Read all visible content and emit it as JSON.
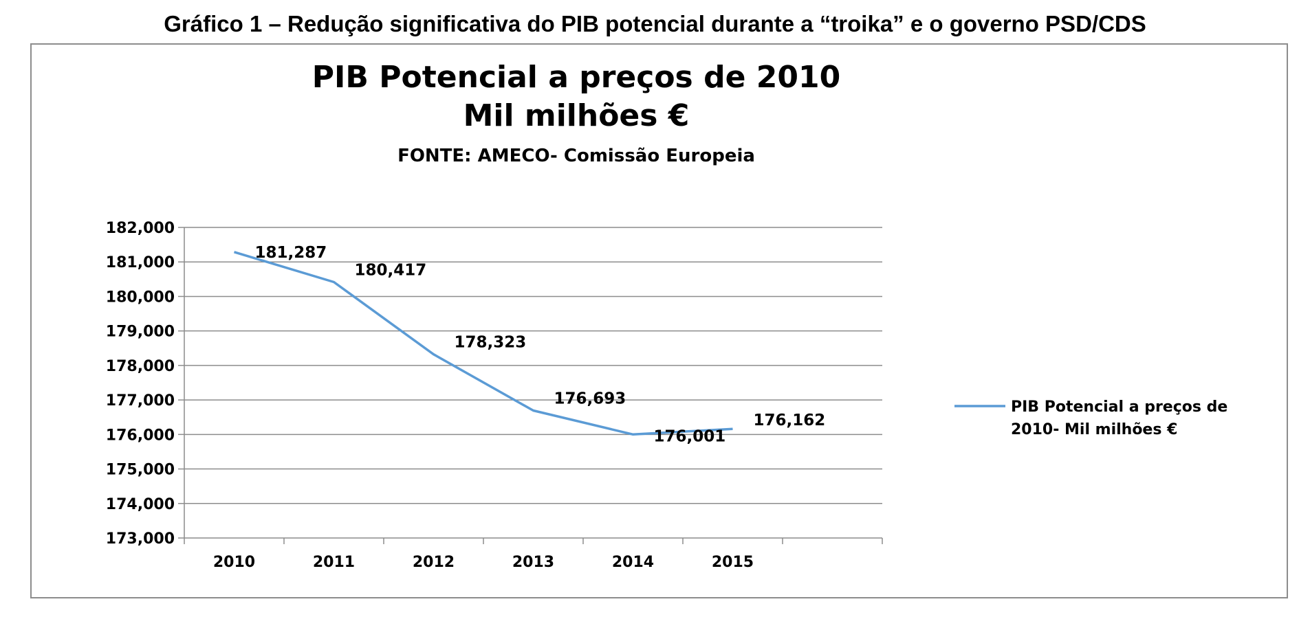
{
  "caption": "Gráfico 1 – Redução significativa do PIB potencial durante a “troika” e o governo PSD/CDS",
  "chart_data": {
    "type": "line",
    "title": [
      "PIB Potencial a preços de 2010",
      "Mil milhões €"
    ],
    "subtitle": "FONTE: AMECO- Comissão Europeia",
    "xlabel": "",
    "ylabel": "",
    "categories": [
      "2010",
      "2011",
      "2012",
      "2013",
      "2014",
      "2015"
    ],
    "y_ticks": [
      "182,000",
      "181,000",
      "180,000",
      "179,000",
      "178,000",
      "177,000",
      "176,000",
      "175,000",
      "174,000",
      "173,000"
    ],
    "ylim": [
      173000,
      182000
    ],
    "grid": true,
    "legend_position": "right",
    "series": [
      {
        "name": [
          "PIB Potencial  a preços de",
          "2010- Mil milhões €"
        ],
        "values": [
          181287,
          180417,
          178323,
          176693,
          176001,
          176162
        ],
        "labels": [
          "181,287",
          "180,417",
          "178,323",
          "176,693",
          "176,001",
          "176,162"
        ],
        "color": "#5b9bd5"
      }
    ]
  }
}
